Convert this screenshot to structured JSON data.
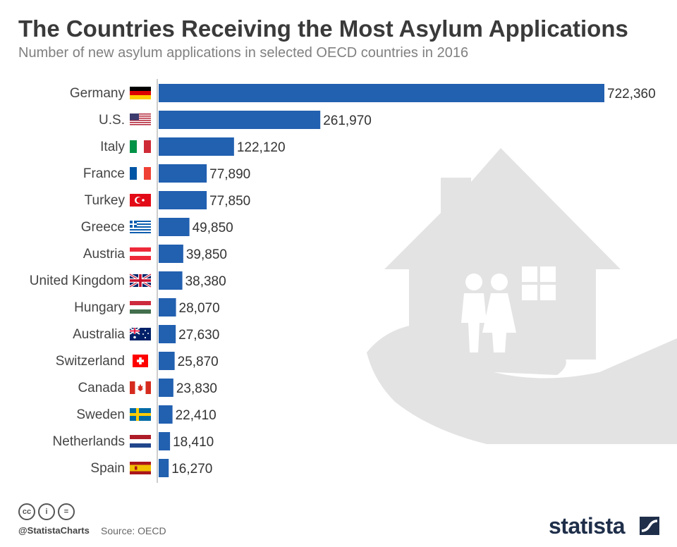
{
  "header": {
    "title": "The Countries Receiving the Most Asylum Applications",
    "subtitle": "Number of new asylum applications in selected OECD countries in 2016"
  },
  "colors": {
    "bar": "#2260b0",
    "axis": "#bcbcbc",
    "illustration": "#e3e3e3"
  },
  "chart_data": {
    "type": "bar",
    "orientation": "horizontal",
    "categories": [
      "Germany",
      "U.S.",
      "Italy",
      "France",
      "Turkey",
      "Greece",
      "Austria",
      "United Kingdom",
      "Hungary",
      "Australia",
      "Switzerland",
      "Canada",
      "Sweden",
      "Netherlands",
      "Spain"
    ],
    "values": [
      722360,
      261970,
      122120,
      77890,
      77850,
      49850,
      39850,
      38380,
      28070,
      27630,
      25870,
      23830,
      22410,
      18410,
      16270
    ],
    "value_labels": [
      "722,360",
      "261,970",
      "122,120",
      "77,890",
      "77,850",
      "49,850",
      "39,850",
      "38,380",
      "28,070",
      "27,630",
      "25,870",
      "23,830",
      "22,410",
      "18,410",
      "16,270"
    ],
    "flags": [
      "germany-flag",
      "usa-flag",
      "italy-flag",
      "france-flag",
      "turkey-flag",
      "greece-flag",
      "austria-flag",
      "uk-flag",
      "hungary-flag",
      "australia-flag",
      "switzerland-flag",
      "canada-flag",
      "sweden-flag",
      "netherlands-flag",
      "spain-flag"
    ],
    "xlim": [
      0,
      722360
    ],
    "grid": false,
    "data_labels": true
  },
  "footer": {
    "license_icons": [
      "cc-icon",
      "by-icon",
      "nd-icon"
    ],
    "license_glyphs": [
      "cc",
      "i",
      "="
    ],
    "handle": "@StatistaCharts",
    "source": "Source: OECD",
    "brand": "statista"
  }
}
